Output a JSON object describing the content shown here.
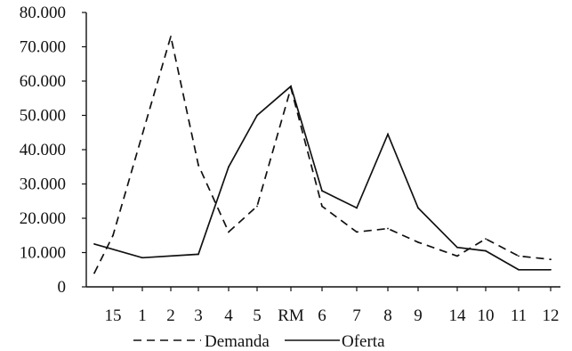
{
  "chart_data": {
    "type": "line",
    "title": "",
    "xlabel": "",
    "ylabel": "",
    "categories": [
      "15",
      "1",
      "2",
      "3",
      "4",
      "5",
      "RM",
      "6",
      "7",
      "8",
      "9",
      "14",
      "10",
      "11",
      "12"
    ],
    "y_tick_labels": [
      "0",
      "10.000",
      "20.000",
      "30.000",
      "40.000",
      "50.000",
      "60.000",
      "70.000",
      "80.000"
    ],
    "y_tick_values": [
      0,
      10000,
      20000,
      30000,
      40000,
      50000,
      60000,
      70000,
      80000
    ],
    "ylim": [
      0,
      80000
    ],
    "grid": false,
    "legend_position": "bottom",
    "series": [
      {
        "name": "Demanda",
        "style": "dashed",
        "color": "#111111",
        "x": [
          "",
          "15",
          "2",
          "3",
          "4",
          "5",
          "RM",
          "6",
          "7",
          "8",
          "9",
          "14",
          "10",
          "11",
          "12"
        ],
        "values": [
          4000,
          15000,
          73000,
          35500,
          16000,
          23500,
          58000,
          23500,
          16000,
          17000,
          13000,
          9000,
          14000,
          9000,
          8000
        ]
      },
      {
        "name": "Oferta",
        "style": "solid",
        "color": "#111111",
        "x": [
          "",
          "1",
          "3",
          "4",
          "5",
          "RM",
          "6",
          "7",
          "8",
          "9",
          "14",
          "10",
          "11",
          "12"
        ],
        "values": [
          12500,
          8500,
          9500,
          35000,
          50000,
          58500,
          28000,
          23000,
          44500,
          23000,
          11500,
          10500,
          5000,
          5000
        ]
      }
    ]
  }
}
